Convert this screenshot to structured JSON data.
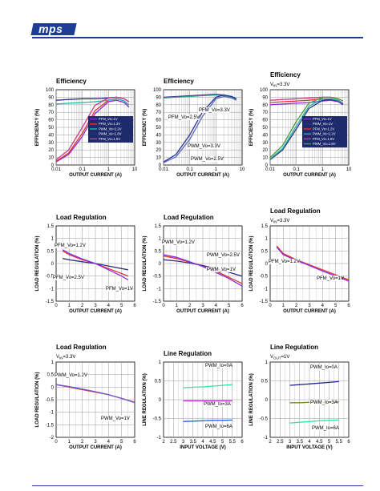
{
  "header": {
    "logo_text": "mps",
    "brand_color": "#1d3e97"
  },
  "panels": [
    {
      "id": "eff1",
      "title": "Efficiency",
      "subtitle": "",
      "type": "eff",
      "xlabel": "OUTPUT CURRENT (A)",
      "ylabel": "EFFICIENCY (%)",
      "xticks": [
        "0.01",
        "0.1",
        "1",
        "10"
      ],
      "yticks": [
        "0",
        "10",
        "20",
        "30",
        "40",
        "50",
        "60",
        "70",
        "80",
        "90",
        "100"
      ],
      "legend": [
        "PFM_Vo=1V",
        "PFM_Vo=1.2V",
        "PWM_Vo=1.2V",
        "PWM_Vo=1.8V",
        "PFM_Vo=1.8V"
      ],
      "annotations": []
    },
    {
      "id": "eff2",
      "title": "Efficiency",
      "subtitle": "",
      "type": "eff",
      "xlabel": "OUTPUT CURRENT (A)",
      "ylabel": "EFFICIENCY (%)",
      "xticks": [
        "0.01",
        "0.1",
        "1",
        "10"
      ],
      "yticks": [
        "0",
        "10",
        "20",
        "30",
        "40",
        "50",
        "60",
        "70",
        "80",
        "90",
        "100"
      ],
      "legend": [],
      "annotations": [
        "PFM_Vo=3.3V",
        "PFM_Vo=2.5V",
        "PWM_Vo=3.3V",
        "PWM_Vo=2.5V"
      ]
    },
    {
      "id": "eff3",
      "title": "Efficiency",
      "subtitle": "VIN=3.3V",
      "type": "eff",
      "xlabel": "OUTPUT CURRENT (A)",
      "ylabel": "EFFICIENCY (%)",
      "xticks": [
        "0.01",
        "0.1",
        "1",
        "10"
      ],
      "yticks": [
        "0",
        "10",
        "20",
        "30",
        "40",
        "50",
        "60",
        "70",
        "80",
        "90",
        "100"
      ],
      "legend": [
        "PFM_Vo=1V",
        "PWM_Vo=1V",
        "PFM_Vo=1.2V",
        "PWM_Vo=1.2V",
        "PFM_Vo=1.8V",
        "PWM_Vo=1.8V"
      ],
      "annotations": []
    },
    {
      "id": "lr1",
      "title": "Load Regulation",
      "subtitle": "",
      "type": "lr",
      "xlabel": "OUTPUT CURRENT (A)",
      "ylabel": "LOAD REGULATION (%)",
      "xticks": [
        "0",
        "1",
        "2",
        "3",
        "4",
        "5",
        "6"
      ],
      "yticks": [
        "1.5",
        "1",
        "0.5",
        "0",
        "-0.5",
        "-1",
        "-1.5"
      ],
      "annotations": [
        "PFM_Vo=1.2V",
        "PFM_Vo=2.5V",
        "PFM_Vo=1V"
      ]
    },
    {
      "id": "lr2",
      "title": "Load Regulation",
      "subtitle": "",
      "type": "lr",
      "xlabel": "OUTPUT CURRENT (A)",
      "ylabel": "LOAD REGULATION (%)",
      "xticks": [
        "0",
        "1",
        "2",
        "3",
        "4",
        "5",
        "6"
      ],
      "yticks": [
        "1.5",
        "1",
        "0.5",
        "0",
        "-0.5",
        "-1",
        "-1.5"
      ],
      "annotations": [
        "PWM_Vo=1.2V",
        "PWM_Vo=2.5V",
        "PWM_Vo=1V"
      ]
    },
    {
      "id": "lr3",
      "title": "Load Regulation",
      "subtitle": "VIN=3.3V",
      "type": "lr",
      "xlabel": "OUTPUT CURRENT (A)",
      "ylabel": "LOAD REGULATION (%)",
      "xticks": [
        "0",
        "1",
        "2",
        "3",
        "4",
        "5",
        "6"
      ],
      "yticks": [
        "1.5",
        "1",
        "0.5",
        "0",
        "-0.5",
        "-1",
        "-1.5"
      ],
      "annotations": [
        "PFM_Vo=1.2V",
        "PFM_Vo=1V"
      ]
    },
    {
      "id": "lr4",
      "title": "Load Regulation",
      "subtitle": "VIN=3.3V",
      "type": "lr4",
      "xlabel": "OUTPUT CURRENT (A)",
      "ylabel": "LOAD REGULATION (%)",
      "xticks": [
        "0",
        "1",
        "2",
        "3",
        "4",
        "5",
        "6"
      ],
      "yticks": [
        "1",
        "0.5",
        "0",
        "-0.5",
        "-1",
        "-1.5",
        "-2"
      ],
      "annotations": [
        "PWM_Vo=1.2V",
        "PWM_Vo=1V"
      ]
    },
    {
      "id": "line1",
      "title": "Line Regulation",
      "subtitle": "",
      "type": "line",
      "xlabel": "INPUT VOLTAGE (V)",
      "ylabel": "LINE REGULATION (%)",
      "xticks": [
        "2",
        "2.5",
        "3",
        "3.5",
        "4",
        "4.5",
        "5",
        "5.5",
        "6"
      ],
      "yticks": [
        "1",
        "0.5",
        "0",
        "-0.5",
        "-1"
      ],
      "annotations": [
        "PWM_Io=0A",
        "PWM_Io=3A",
        "PWM_Io=6A"
      ]
    },
    {
      "id": "line2",
      "title": "Line Regulation",
      "subtitle": "VOUT=1V",
      "type": "line",
      "xlabel": "INPUT VOLTAGE (V)",
      "ylabel": "LINE REGULATION (%)",
      "xticks": [
        "2",
        "2.5",
        "3",
        "3.5",
        "4",
        "4.5",
        "5",
        "5.5",
        "6"
      ],
      "yticks": [
        "1",
        "0.5",
        "0",
        "-0.5",
        "-1"
      ],
      "annotations": [
        "PWM_Io=0A",
        "PWM_Io=3A",
        "PWM_Io=6A"
      ]
    }
  ],
  "chart_data": [
    {
      "type": "line",
      "title": "Efficiency",
      "xscale": "log",
      "xlabel": "OUTPUT CURRENT (A)",
      "ylabel": "EFFICIENCY (%)",
      "xlim": [
        0.01,
        10
      ],
      "ylim": [
        0,
        100
      ],
      "series": [
        {
          "name": "PFM_Vo=1V",
          "color": "#8a2be2",
          "x": [
            0.01,
            0.03,
            0.1,
            0.3,
            1,
            2,
            4,
            6
          ],
          "y": [
            4,
            14,
            38,
            68,
            84,
            86,
            83,
            77
          ]
        },
        {
          "name": "PFM_Vo=1.2V",
          "color": "#e8322c",
          "x": [
            0.01,
            0.03,
            0.1,
            0.3,
            1,
            2,
            4,
            6
          ],
          "y": [
            5,
            16,
            42,
            72,
            86,
            88,
            85,
            80
          ]
        },
        {
          "name": "PWM_Vo=1.2V",
          "color": "#23b5a7",
          "x": [
            0.01,
            0.03,
            0.1,
            0.3,
            1,
            2,
            4,
            6
          ],
          "y": [
            81,
            82,
            83,
            84,
            86,
            88,
            85,
            80
          ]
        },
        {
          "name": "PWM_Vo=1.8V",
          "color": "#2f2f86",
          "x": [
            0.01,
            0.03,
            0.1,
            0.3,
            1,
            2,
            4,
            6
          ],
          "y": [
            86,
            87,
            88,
            88,
            89,
            90,
            88,
            84
          ]
        },
        {
          "name": "PFM_Vo=1.8V",
          "color": "#cc3b8a",
          "x": [
            0.01,
            0.03,
            0.1,
            0.3,
            1,
            2,
            4,
            6
          ],
          "y": [
            7,
            20,
            50,
            79,
            89,
            90,
            88,
            84
          ]
        }
      ]
    },
    {
      "type": "line",
      "title": "Efficiency",
      "xscale": "log",
      "xlabel": "OUTPUT CURRENT (A)",
      "ylabel": "EFFICIENCY (%)",
      "xlim": [
        0.01,
        10
      ],
      "ylim": [
        0,
        100
      ],
      "series": [
        {
          "name": "PFM_Vo=3.3V",
          "color": "#5a2d8a",
          "x": [
            0.01,
            0.03,
            0.1,
            0.3,
            1,
            2,
            4,
            6
          ],
          "y": [
            90,
            91,
            92,
            93,
            94,
            93,
            91,
            88
          ]
        },
        {
          "name": "PFM_Vo=2.5V",
          "color": "#2ca58d",
          "x": [
            0.01,
            0.03,
            0.1,
            0.3,
            1,
            2,
            4,
            6
          ],
          "y": [
            89,
            90,
            91,
            92,
            93,
            92,
            90,
            87
          ]
        },
        {
          "name": "PWM_Vo=3.3V",
          "color": "#283593",
          "x": [
            0.01,
            0.03,
            0.1,
            0.3,
            1,
            2,
            4,
            6
          ],
          "y": [
            4,
            14,
            40,
            70,
            90,
            93,
            91,
            88
          ]
        },
        {
          "name": "PWM_Vo=2.5V",
          "color": "#5c6bc0",
          "x": [
            0.01,
            0.03,
            0.1,
            0.3,
            1,
            2,
            4,
            6
          ],
          "y": [
            3,
            11,
            34,
            64,
            88,
            91,
            89,
            86
          ]
        }
      ]
    },
    {
      "type": "line",
      "title": "Efficiency",
      "subtitle": "VIN=3.3V",
      "xscale": "log",
      "xlabel": "OUTPUT CURRENT (A)",
      "ylabel": "EFFICIENCY (%)",
      "xlim": [
        0.01,
        10
      ],
      "ylim": [
        0,
        100
      ],
      "series": [
        {
          "name": "PFM_Vo=1V",
          "color": "#8a2be2",
          "x": [
            0.01,
            0.03,
            0.1,
            0.3,
            1,
            2,
            4,
            6
          ],
          "y": [
            80,
            81,
            82,
            83,
            85,
            86,
            84,
            80
          ]
        },
        {
          "name": "PWM_Vo=1V",
          "color": "#2f2f86",
          "x": [
            0.01,
            0.03,
            0.1,
            0.3,
            1,
            2,
            4,
            6
          ],
          "y": [
            7,
            20,
            48,
            75,
            86,
            87,
            85,
            81
          ]
        },
        {
          "name": "PFM_Vo=1.2V",
          "color": "#e8322c",
          "x": [
            0.01,
            0.03,
            0.1,
            0.3,
            1,
            2,
            4,
            6
          ],
          "y": [
            83,
            84,
            85,
            86,
            88,
            88,
            86,
            82
          ]
        },
        {
          "name": "PWM_Vo=1.2V",
          "color": "#23b5a7",
          "x": [
            0.01,
            0.03,
            0.1,
            0.3,
            1,
            2,
            4,
            6
          ],
          "y": [
            8,
            22,
            52,
            78,
            88,
            88,
            86,
            82
          ]
        },
        {
          "name": "PFM_Vo=1.8V",
          "color": "#cc3b8a",
          "x": [
            0.01,
            0.03,
            0.1,
            0.3,
            1,
            2,
            4,
            6
          ],
          "y": [
            86,
            87,
            88,
            89,
            90,
            90,
            88,
            85
          ]
        },
        {
          "name": "PWM_Vo=1.8V",
          "color": "#4e9a3a",
          "x": [
            0.01,
            0.03,
            0.1,
            0.3,
            1,
            2,
            4,
            6
          ],
          "y": [
            10,
            26,
            58,
            82,
            90,
            90,
            88,
            85
          ]
        }
      ]
    },
    {
      "type": "line",
      "title": "Load Regulation",
      "xlabel": "OUTPUT CURRENT (A)",
      "ylabel": "LOAD REGULATION (%)",
      "xlim": [
        0,
        6
      ],
      "ylim": [
        -1.5,
        1.5
      ],
      "series": [
        {
          "name": "PFM_Vo=1.2V",
          "color": "#e8322c",
          "x": [
            0.5,
            1,
            2,
            3,
            4,
            5,
            5.5
          ],
          "y": [
            0.5,
            0.35,
            0.15,
            0.0,
            -0.2,
            -0.4,
            -0.5
          ]
        },
        {
          "name": "PFM_Vo=2.5V",
          "color": "#2f2f86",
          "x": [
            0.5,
            1,
            2,
            3,
            4,
            5,
            5.5
          ],
          "y": [
            0.2,
            0.15,
            0.07,
            0.0,
            -0.1,
            -0.2,
            -0.25
          ]
        },
        {
          "name": "PFM_Vo=1V",
          "color": "#8a2be2",
          "x": [
            0.5,
            1,
            2,
            3,
            4,
            5,
            5.5
          ],
          "y": [
            0.55,
            0.4,
            0.18,
            0.0,
            -0.25,
            -0.5,
            -0.65
          ]
        }
      ]
    },
    {
      "type": "line",
      "title": "Load Regulation",
      "xlabel": "OUTPUT CURRENT (A)",
      "ylabel": "LOAD REGULATION (%)",
      "xlim": [
        0,
        6
      ],
      "ylim": [
        -1.5,
        1.5
      ],
      "series": [
        {
          "name": "PWM_Vo=1.2V",
          "color": "#e8322c",
          "x": [
            0,
            1,
            2,
            3,
            4,
            5,
            6
          ],
          "y": [
            0.3,
            0.2,
            0.05,
            -0.1,
            -0.3,
            -0.55,
            -0.8
          ]
        },
        {
          "name": "PWM_Vo=2.5V",
          "color": "#2f2f86",
          "x": [
            0,
            1,
            2,
            3,
            4,
            5,
            6
          ],
          "y": [
            0.15,
            0.1,
            0.02,
            -0.08,
            -0.2,
            -0.35,
            -0.5
          ]
        },
        {
          "name": "PWM_Vo=1V",
          "color": "#8a2be2",
          "x": [
            0,
            1,
            2,
            3,
            4,
            5,
            6
          ],
          "y": [
            0.35,
            0.25,
            0.07,
            -0.12,
            -0.35,
            -0.6,
            -0.9
          ]
        }
      ]
    },
    {
      "type": "line",
      "title": "Load Regulation",
      "subtitle": "VIN=3.3V",
      "xlabel": "OUTPUT CURRENT (A)",
      "ylabel": "LOAD REGULATION (%)",
      "xlim": [
        0,
        6
      ],
      "ylim": [
        -1.5,
        1.5
      ],
      "series": [
        {
          "name": "PFM_Vo=1.2V",
          "color": "#e8322c",
          "x": [
            0.5,
            1,
            2,
            3,
            4,
            5,
            6
          ],
          "y": [
            0.7,
            0.4,
            0.15,
            -0.05,
            -0.25,
            -0.45,
            -0.65
          ]
        },
        {
          "name": "PFM_Vo=1V",
          "color": "#8a2be2",
          "x": [
            0.5,
            1,
            2,
            3,
            4,
            5,
            6
          ],
          "y": [
            0.65,
            0.35,
            0.12,
            -0.08,
            -0.3,
            -0.5,
            -0.7
          ]
        }
      ]
    },
    {
      "type": "line",
      "title": "Load Regulation",
      "subtitle": "VIN=3.3V",
      "xlabel": "OUTPUT CURRENT (A)",
      "ylabel": "LOAD REGULATION (%)",
      "xlim": [
        0,
        6
      ],
      "ylim": [
        -2,
        1
      ],
      "series": [
        {
          "name": "PWM_Vo=1.2V",
          "color": "#e8322c",
          "x": [
            0,
            1,
            2,
            3,
            4,
            5,
            6
          ],
          "y": [
            0.1,
            0.0,
            -0.1,
            -0.2,
            -0.3,
            -0.45,
            -0.6
          ]
        },
        {
          "name": "PWM_Vo=1V",
          "color": "#6a5acd",
          "x": [
            0,
            1,
            2,
            3,
            4,
            5,
            6
          ],
          "y": [
            0.1,
            0.02,
            -0.08,
            -0.18,
            -0.3,
            -0.45,
            -0.62
          ]
        }
      ]
    },
    {
      "type": "line",
      "title": "Line Regulation",
      "xlabel": "INPUT VOLTAGE (V)",
      "ylabel": "LINE REGULATION (%)",
      "xlim": [
        2,
        6
      ],
      "ylim": [
        -1,
        1
      ],
      "series": [
        {
          "name": "PWM_Io=0A",
          "color": "#2fe6a0",
          "x": [
            3,
            3.5,
            4,
            4.5,
            5,
            5.5
          ],
          "y": [
            0.32,
            0.33,
            0.34,
            0.36,
            0.38,
            0.4
          ]
        },
        {
          "name": "PWM_Io=3A",
          "color": "#c026d3",
          "x": [
            3,
            3.5,
            4,
            4.5,
            5,
            5.5
          ],
          "y": [
            -0.03,
            -0.03,
            -0.03,
            -0.03,
            -0.03,
            -0.03
          ]
        },
        {
          "name": "PWM_Io=6A",
          "color": "#2563eb",
          "x": [
            3,
            3.5,
            4,
            4.5,
            5,
            5.5
          ],
          "y": [
            -0.58,
            -0.57,
            -0.56,
            -0.55,
            -0.55,
            -0.54
          ]
        }
      ]
    },
    {
      "type": "line",
      "title": "Line Regulation",
      "subtitle": "VOUT=1V",
      "xlabel": "INPUT VOLTAGE (V)",
      "ylabel": "LINE REGULATION (%)",
      "xlim": [
        2,
        6
      ],
      "ylim": [
        -1,
        1
      ],
      "series": [
        {
          "name": "PWM_Io=0A",
          "color": "#1e2a8a",
          "x": [
            3,
            3.5,
            4,
            4.5,
            5,
            5.5
          ],
          "y": [
            0.38,
            0.4,
            0.42,
            0.44,
            0.46,
            0.48
          ]
        },
        {
          "name": "PWM_Io=3A",
          "color": "#6b8e23",
          "x": [
            3,
            3.5,
            4,
            4.5,
            5,
            5.5
          ],
          "y": [
            -0.08,
            -0.08,
            -0.07,
            -0.07,
            -0.06,
            -0.06
          ]
        },
        {
          "name": "PWM_Io=6A",
          "color": "#2fe6a0",
          "x": [
            3,
            3.5,
            4,
            4.5,
            5,
            5.5
          ],
          "y": [
            -0.62,
            -0.6,
            -0.58,
            -0.56,
            -0.55,
            -0.54
          ]
        }
      ]
    }
  ]
}
